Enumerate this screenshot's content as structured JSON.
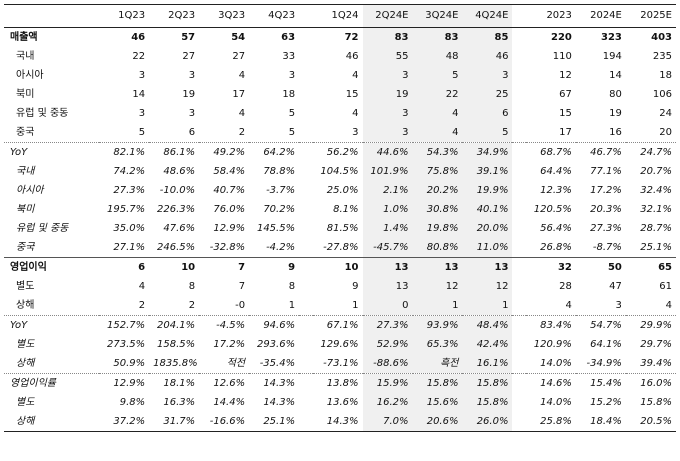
{
  "headers": [
    "",
    "1Q23",
    "2Q23",
    "3Q23",
    "4Q23",
    "1Q24",
    "2Q24E",
    "3Q24E",
    "4Q24E",
    "2023",
    "2024E",
    "2025E"
  ],
  "rows": [
    {
      "label": "매출액",
      "cells": [
        "46",
        "57",
        "54",
        "63",
        "72",
        "83",
        "83",
        "85",
        "220",
        "323",
        "403"
      ],
      "style": "bold",
      "sep": "top",
      "sub": false
    },
    {
      "label": "국내",
      "cells": [
        "22",
        "27",
        "27",
        "33",
        "46",
        "55",
        "48",
        "46",
        "110",
        "194",
        "235"
      ],
      "style": "",
      "sep": "",
      "sub": true
    },
    {
      "label": "아시아",
      "cells": [
        "3",
        "3",
        "4",
        "3",
        "4",
        "3",
        "5",
        "3",
        "12",
        "14",
        "18"
      ],
      "style": "",
      "sep": "",
      "sub": true
    },
    {
      "label": "북미",
      "cells": [
        "14",
        "19",
        "17",
        "18",
        "15",
        "19",
        "22",
        "25",
        "67",
        "80",
        "106"
      ],
      "style": "",
      "sep": "",
      "sub": true
    },
    {
      "label": "유럽 및 중동",
      "cells": [
        "3",
        "3",
        "4",
        "5",
        "4",
        "3",
        "4",
        "6",
        "15",
        "19",
        "24"
      ],
      "style": "",
      "sep": "",
      "sub": true
    },
    {
      "label": "중국",
      "cells": [
        "5",
        "6",
        "2",
        "5",
        "3",
        "3",
        "4",
        "5",
        "17",
        "16",
        "20"
      ],
      "style": "",
      "sep": "",
      "sub": true
    },
    {
      "label": "YoY",
      "cells": [
        "82.1%",
        "86.1%",
        "49.2%",
        "64.2%",
        "56.2%",
        "44.6%",
        "54.3%",
        "34.9%",
        "68.7%",
        "46.7%",
        "24.7%"
      ],
      "style": "italic",
      "sep": "dot",
      "sub": false
    },
    {
      "label": "국내",
      "cells": [
        "74.2%",
        "48.6%",
        "58.4%",
        "78.8%",
        "104.5%",
        "101.9%",
        "75.8%",
        "39.1%",
        "64.4%",
        "77.1%",
        "20.7%"
      ],
      "style": "italic",
      "sep": "",
      "sub": true
    },
    {
      "label": "아시아",
      "cells": [
        "27.3%",
        "-10.0%",
        "40.7%",
        "-3.7%",
        "25.0%",
        "2.1%",
        "20.2%",
        "19.9%",
        "12.3%",
        "17.2%",
        "32.4%"
      ],
      "style": "italic",
      "sep": "",
      "sub": true
    },
    {
      "label": "북미",
      "cells": [
        "195.7%",
        "226.3%",
        "76.0%",
        "70.2%",
        "8.1%",
        "1.0%",
        "30.8%",
        "40.1%",
        "120.5%",
        "20.3%",
        "32.1%"
      ],
      "style": "italic",
      "sep": "",
      "sub": true
    },
    {
      "label": "유럽 및 중동",
      "cells": [
        "35.0%",
        "47.6%",
        "12.9%",
        "145.5%",
        "81.5%",
        "1.4%",
        "19.8%",
        "20.0%",
        "56.4%",
        "27.3%",
        "28.7%"
      ],
      "style": "italic",
      "sep": "",
      "sub": true
    },
    {
      "label": "중국",
      "cells": [
        "27.1%",
        "246.5%",
        "-32.8%",
        "-4.2%",
        "-27.8%",
        "-45.7%",
        "80.8%",
        "11.0%",
        "26.8%",
        "-8.7%",
        "25.1%"
      ],
      "style": "italic",
      "sep": "",
      "sub": true
    },
    {
      "label": "영업이익",
      "cells": [
        "6",
        "10",
        "7",
        "9",
        "10",
        "13",
        "13",
        "13",
        "32",
        "50",
        "65"
      ],
      "style": "bold",
      "sep": "top",
      "sub": false
    },
    {
      "label": "별도",
      "cells": [
        "4",
        "8",
        "7",
        "8",
        "9",
        "13",
        "12",
        "12",
        "28",
        "47",
        "61"
      ],
      "style": "",
      "sep": "",
      "sub": true
    },
    {
      "label": "상해",
      "cells": [
        "2",
        "2",
        "-0",
        "1",
        "1",
        "0",
        "1",
        "1",
        "4",
        "3",
        "4"
      ],
      "style": "",
      "sep": "",
      "sub": true
    },
    {
      "label": "YoY",
      "cells": [
        "152.7%",
        "204.1%",
        "-4.5%",
        "94.6%",
        "67.1%",
        "27.3%",
        "93.9%",
        "48.4%",
        "83.4%",
        "54.7%",
        "29.9%"
      ],
      "style": "italic",
      "sep": "dot",
      "sub": false
    },
    {
      "label": "별도",
      "cells": [
        "273.5%",
        "158.5%",
        "17.2%",
        "293.6%",
        "129.6%",
        "52.9%",
        "65.3%",
        "42.4%",
        "120.9%",
        "64.1%",
        "29.7%"
      ],
      "style": "italic",
      "sep": "",
      "sub": true
    },
    {
      "label": "상해",
      "cells": [
        "50.9%",
        "1835.8%",
        "적전",
        "-35.4%",
        "-73.1%",
        "-88.6%",
        "흑전",
        "16.1%",
        "14.0%",
        "-34.9%",
        "39.4%"
      ],
      "style": "italic",
      "sep": "",
      "sub": true
    },
    {
      "label": "영업이익률",
      "cells": [
        "12.9%",
        "18.1%",
        "12.6%",
        "14.3%",
        "13.8%",
        "15.9%",
        "15.8%",
        "15.8%",
        "14.6%",
        "15.4%",
        "16.0%"
      ],
      "style": "italic",
      "sep": "dot",
      "sub": false
    },
    {
      "label": "별도",
      "cells": [
        "9.8%",
        "16.3%",
        "14.4%",
        "14.3%",
        "13.6%",
        "16.2%",
        "15.6%",
        "15.8%",
        "14.0%",
        "15.2%",
        "15.8%"
      ],
      "style": "italic",
      "sep": "",
      "sub": true
    },
    {
      "label": "상해",
      "cells": [
        "37.2%",
        "31.7%",
        "-16.6%",
        "25.1%",
        "14.3%",
        "7.0%",
        "20.6%",
        "26.0%",
        "25.8%",
        "18.4%",
        "20.5%"
      ],
      "style": "italic",
      "sep": "",
      "sub": true
    }
  ]
}
